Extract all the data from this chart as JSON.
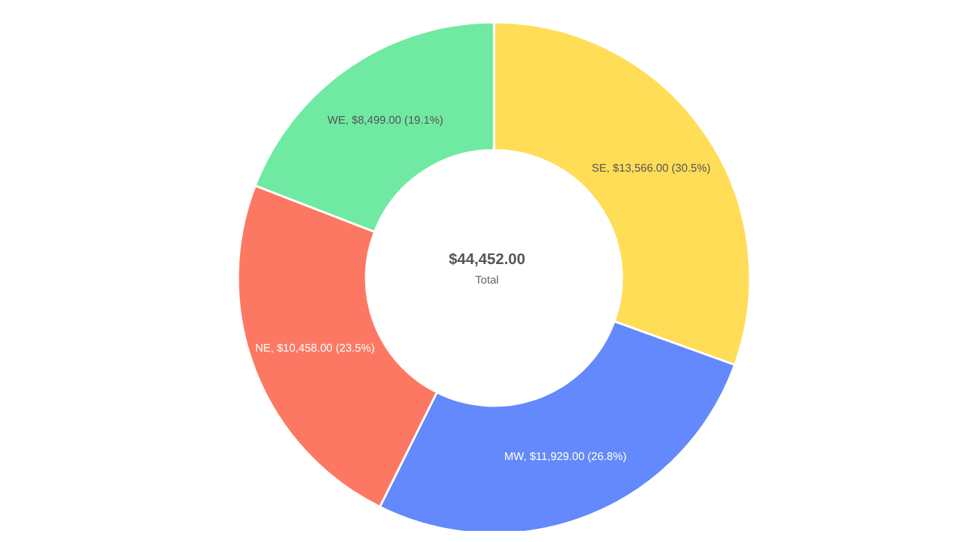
{
  "chart_data": {
    "type": "donut",
    "categories": [
      "SE",
      "MW",
      "NE",
      "WE"
    ],
    "values": [
      13566,
      11929,
      10458,
      8499
    ],
    "colors": [
      "#ffdd57",
      "#6389fc",
      "#fd7862",
      "#70eaa3"
    ],
    "value_labels": [
      ", $13,566.00 (30.5%)",
      ", $11,929.00 (26.8%)",
      ", $10,458.00 (23.5%)",
      ", $8,499.00 (19.1%)"
    ],
    "annotations": [
      "$44,452.00",
      "Total"
    ],
    "legend": false
  }
}
